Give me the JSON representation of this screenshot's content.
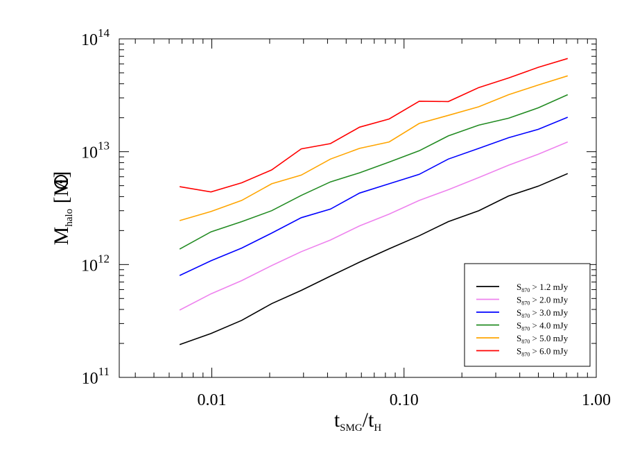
{
  "chart_data": {
    "type": "line",
    "xlabel": {
      "main": "t",
      "sub": "SMG",
      "mid": "/t",
      "sub2": "H"
    },
    "ylabel": {
      "main": "M",
      "sub": "halo",
      "bracket_open": " [M",
      "bracket_close": "]"
    },
    "xscale": "log",
    "yscale": "log",
    "xlim": [
      0.0033,
      1.0
    ],
    "ylim": [
      100000000000.0,
      100000000000000.0
    ],
    "x_ticks": [
      {
        "value": 0.01,
        "label": "0.01"
      },
      {
        "value": 0.1,
        "label": "0.10"
      },
      {
        "value": 1.0,
        "label": "1.00"
      }
    ],
    "y_ticks": [
      {
        "value": 100000000000.0,
        "base": "10",
        "exp": "11"
      },
      {
        "value": 1000000000000.0,
        "base": "10",
        "exp": "12"
      },
      {
        "value": 10000000000000.0,
        "base": "10",
        "exp": "13"
      },
      {
        "value": 100000000000000.0,
        "base": "10",
        "exp": "14"
      }
    ],
    "grid": false,
    "legend_position": "bottom-right",
    "x": [
      0.0068,
      0.0099,
      0.0143,
      0.0205,
      0.0292,
      0.0414,
      0.0587,
      0.0837,
      0.12,
      0.17,
      0.245,
      0.35,
      0.5,
      0.71
    ],
    "series": [
      {
        "name": "S > 1.2 mJy",
        "label_pre": "S",
        "label_sub": "870",
        "label_post": " > 1.2 mJy",
        "color": "#000000",
        "values": [
          195000000000.0,
          245000000000.0,
          320000000000.0,
          450000000000.0,
          590000000000.0,
          790000000000.0,
          1050000000000.0,
          1380000000000.0,
          1800000000000.0,
          2400000000000.0,
          3000000000000.0,
          4050000000000.0,
          4950000000000.0,
          6400000000000.0
        ]
      },
      {
        "name": "S > 2.0 mJy",
        "label_pre": "S",
        "label_sub": "870",
        "label_post": " > 2.0 mJy",
        "color": "#ee82ee",
        "values": [
          395000000000.0,
          550000000000.0,
          720000000000.0,
          980000000000.0,
          1300000000000.0,
          1650000000000.0,
          2200000000000.0,
          2800000000000.0,
          3700000000000.0,
          4600000000000.0,
          5900000000000.0,
          7600000000000.0,
          9500000000000.0,
          12200000000000.0
        ]
      },
      {
        "name": "S > 3.0 mJy",
        "label_pre": "S",
        "label_sub": "870",
        "label_post": " > 3.0 mJy",
        "color": "#0000ff",
        "values": [
          800000000000.0,
          1080000000000.0,
          1400000000000.0,
          1900000000000.0,
          2600000000000.0,
          3100000000000.0,
          4300000000000.0,
          5200000000000.0,
          6300000000000.0,
          8600000000000.0,
          10700000000000.0,
          13300000000000.0,
          15800000000000.0,
          20200000000000.0
        ]
      },
      {
        "name": "S > 4.0 mJy",
        "label_pre": "S",
        "label_sub": "870",
        "label_post": " > 4.0 mJy",
        "color": "#228b22",
        "values": [
          1370000000000.0,
          1950000000000.0,
          2400000000000.0,
          3000000000000.0,
          4100000000000.0,
          5400000000000.0,
          6500000000000.0,
          8100000000000.0,
          10200000000000.0,
          13800000000000.0,
          17200000000000.0,
          19800000000000.0,
          24500000000000.0,
          32000000000000.0
        ]
      },
      {
        "name": "S > 5.0 mJy",
        "label_pre": "S",
        "label_sub": "870",
        "label_post": " > 5.0 mJy",
        "color": "#ffa500",
        "values": [
          2450000000000.0,
          2950000000000.0,
          3700000000000.0,
          5200000000000.0,
          6200000000000.0,
          8600000000000.0,
          10700000000000.0,
          12200000000000.0,
          17800000000000.0,
          21000000000000.0,
          25000000000000.0,
          32000000000000.0,
          39000000000000.0,
          47000000000000.0
        ]
      },
      {
        "name": "S > 6.0 mJy",
        "label_pre": "S",
        "label_sub": "870",
        "label_post": " > 6.0 mJy",
        "color": "#ff0000",
        "values": [
          4900000000000.0,
          4400000000000.0,
          5300000000000.0,
          6900000000000.0,
          10600000000000.0,
          11800000000000.0,
          16500000000000.0,
          19500000000000.0,
          28000000000000.0,
          27800000000000.0,
          37000000000000.0,
          45000000000000.0,
          56000000000000.0,
          67000000000000.0
        ]
      }
    ]
  }
}
